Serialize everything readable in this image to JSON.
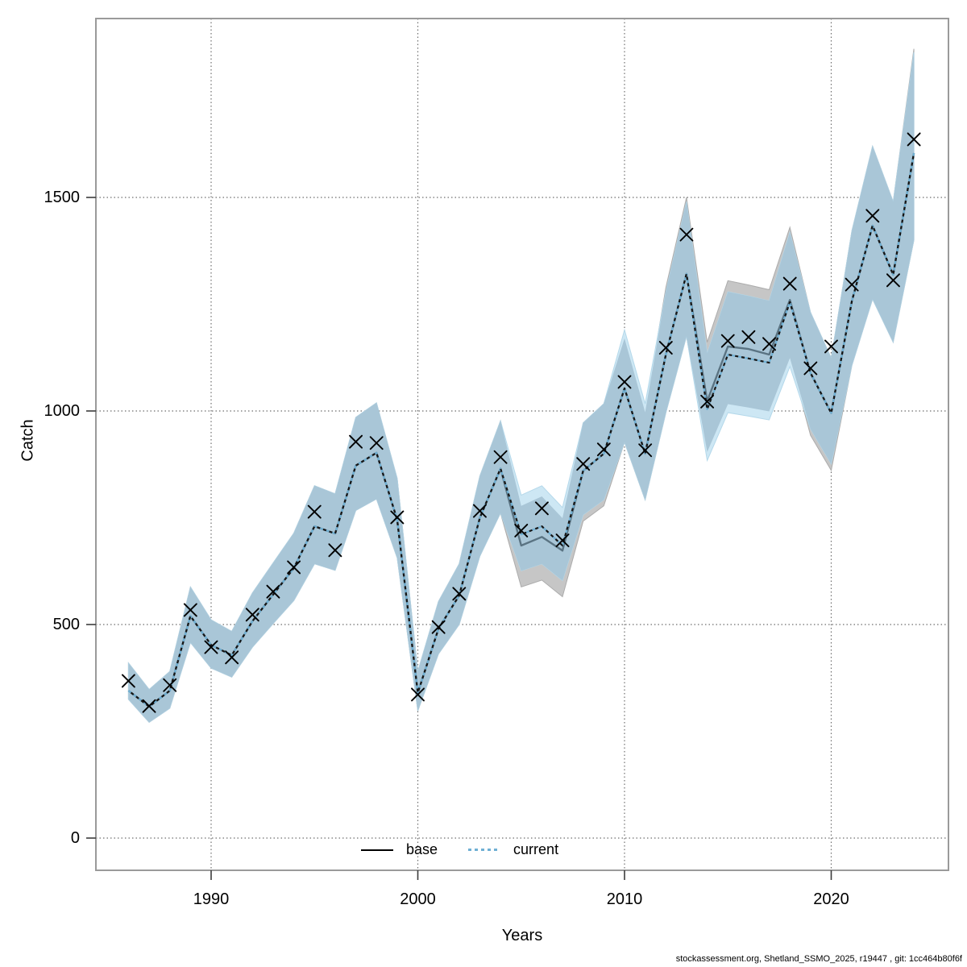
{
  "chart_data": {
    "type": "line",
    "title": "",
    "xlabel": "Years",
    "ylabel": "Catch",
    "x_ticks": [
      1990,
      2000,
      2010,
      2020
    ],
    "y_ticks": [
      0,
      500,
      1000,
      1500
    ],
    "xlim": [
      1984.4,
      2025.7
    ],
    "ylim": [
      -75,
      1920
    ],
    "grid": "dotted, on tick positions",
    "legend_position": "bottom-center",
    "years": [
      1986,
      1987,
      1988,
      1989,
      1990,
      1991,
      1992,
      1993,
      1994,
      1995,
      1996,
      1997,
      1998,
      1999,
      2000,
      2001,
      2002,
      2003,
      2004,
      2005,
      2006,
      2007,
      2008,
      2009,
      2010,
      2011,
      2012,
      2013,
      2014,
      2015,
      2016,
      2017,
      2018,
      2019,
      2020,
      2021,
      2022,
      2023,
      2024
    ],
    "observed_catch": [
      368,
      309,
      358,
      534,
      447,
      423,
      523,
      577,
      634,
      764,
      674,
      928,
      925,
      751,
      336,
      494,
      572,
      766,
      892,
      720,
      772,
      697,
      876,
      910,
      1068,
      908,
      1148,
      1413,
      1022,
      1164,
      1173,
      1157,
      1298,
      1100,
      1151,
      1296,
      1457,
      1306,
      1636
    ],
    "series": [
      {
        "name": "base",
        "style": "solid",
        "line_color": "#5A7382",
        "band_color": "#C6C6C6",
        "fit": [
          345,
          308,
          345,
          520,
          452,
          428,
          508,
          570,
          632,
          730,
          713,
          872,
          902,
          745,
          340,
          490,
          568,
          750,
          865,
          685,
          705,
          673,
          860,
          900,
          1053,
          900,
          1132,
          1321,
          1023,
          1151,
          1145,
          1132,
          1260,
          1089,
          995,
          1258,
          1434,
          1319,
          1604
        ],
        "ci_lo": [
          325,
          271,
          304,
          458,
          398,
          377,
          447,
          502,
          556,
          642,
          627,
          767,
          794,
          656,
          298,
          431,
          500,
          660,
          761,
          588,
          604,
          565,
          742,
          778,
          927,
          792,
          996,
          1175,
          904,
          1016,
          1008,
          999,
          1124,
          943,
          861,
          1107,
          1262,
          1161,
          1400
        ],
        "ci_hi": [
          410,
          348,
          390,
          588,
          511,
          484,
          574,
          644,
          714,
          825,
          806,
          985,
          1019,
          842,
          390,
          554,
          642,
          848,
          977,
          778,
          800,
          749,
          972,
          1017,
          1170,
          997,
          1289,
          1500,
          1161,
          1305,
          1295,
          1284,
          1430,
          1231,
          1124,
          1422,
          1620,
          1490,
          1848
        ]
      },
      {
        "name": "current",
        "style": "dotted",
        "line_color": "#6FB0D4",
        "band_color": "#CDE7F4",
        "fit": [
          345,
          308,
          345,
          520,
          452,
          428,
          508,
          570,
          632,
          730,
          713,
          872,
          902,
          745,
          340,
          490,
          568,
          750,
          865,
          711,
          730,
          685,
          860,
          900,
          1053,
          900,
          1132,
          1321,
          1004,
          1132,
          1123,
          1113,
          1255,
          1089,
          995,
          1258,
          1434,
          1319,
          1604
        ],
        "ci_lo": [
          325,
          271,
          304,
          458,
          398,
          377,
          447,
          502,
          556,
          642,
          627,
          767,
          794,
          656,
          298,
          431,
          500,
          660,
          761,
          626,
          642,
          603,
          757,
          792,
          927,
          792,
          996,
          1175,
          884,
          996,
          988,
          979,
          1104,
          958,
          876,
          1107,
          1262,
          1161,
          1400
        ],
        "ci_hi": [
          410,
          348,
          390,
          588,
          511,
          484,
          574,
          644,
          714,
          825,
          806,
          985,
          1019,
          842,
          390,
          554,
          642,
          848,
          977,
          803,
          825,
          774,
          972,
          1017,
          1190,
          1017,
          1279,
          1490,
          1135,
          1279,
          1269,
          1258,
          1418,
          1231,
          1124,
          1422,
          1620,
          1490,
          1840
        ]
      }
    ]
  },
  "legend": {
    "items": [
      {
        "label": "base"
      },
      {
        "label": "current"
      }
    ]
  },
  "axis": {
    "ylabel": "Catch",
    "xlabel": "Years"
  },
  "footer": {
    "text": "stockassessment.org, Shetland_SSMO_2025, r19447 , git: 1cc464b80f6f"
  },
  "colors": {
    "band_overlap": "#A9C6D7",
    "band_base_only": "#C6C6C6",
    "band_current_only": "#CDE7F4",
    "band_base_edge": "#ACACAC",
    "band_current_edge": "#B4D8EA",
    "base_line": "#5A7382",
    "current_line_light": "#6FB0D4",
    "current_line_dark": "#161616",
    "marker": "#000000",
    "grid": "#6E6E6E",
    "border": "#9A9A9A",
    "tick": "#3C3C3C",
    "legend_base_line": "#000000"
  }
}
